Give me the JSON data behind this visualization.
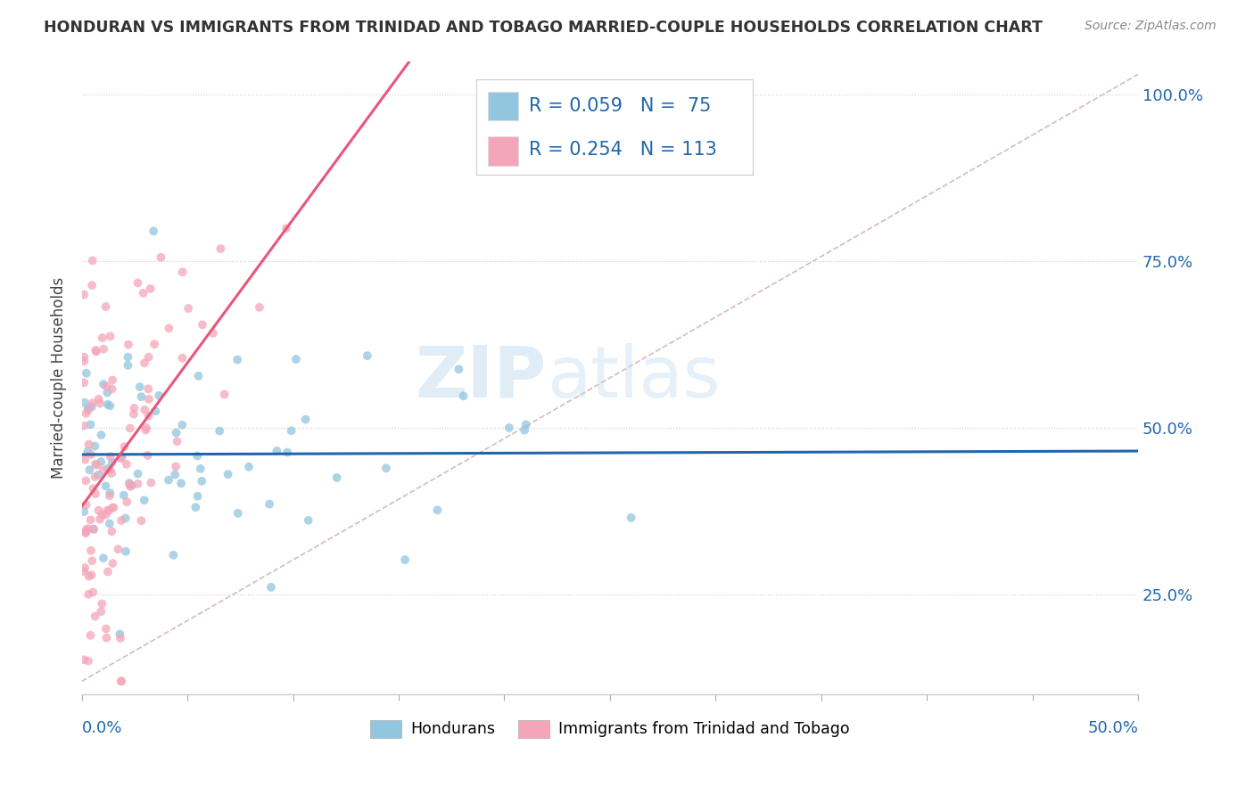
{
  "title": "HONDURAN VS IMMIGRANTS FROM TRINIDAD AND TOBAGO MARRIED-COUPLE HOUSEHOLDS CORRELATION CHART",
  "source": "Source: ZipAtlas.com",
  "ylabel": "Married-couple Households",
  "xmin": 0.0,
  "xmax": 0.5,
  "ymin": 0.1,
  "ymax": 1.05,
  "yticks": [
    0.25,
    0.5,
    0.75,
    1.0
  ],
  "ytick_labels": [
    "25.0%",
    "50.0%",
    "75.0%",
    "100.0%"
  ],
  "watermark_zip": "ZIP",
  "watermark_atlas": "atlas",
  "blue_color": "#92c5de",
  "pink_color": "#f4a6b8",
  "blue_line_color": "#2166ac",
  "pink_line_color": "#e8567a",
  "ref_line_color": "#ccaaaa",
  "scatter_alpha": 0.75,
  "scatter_size": 50,
  "blue_R": 0.059,
  "blue_N": 75,
  "pink_R": 0.254,
  "pink_N": 113,
  "seed_blue": 42,
  "seed_pink": 99,
  "legend_text_color": "#2166ac",
  "legend_label_color": "#333333"
}
